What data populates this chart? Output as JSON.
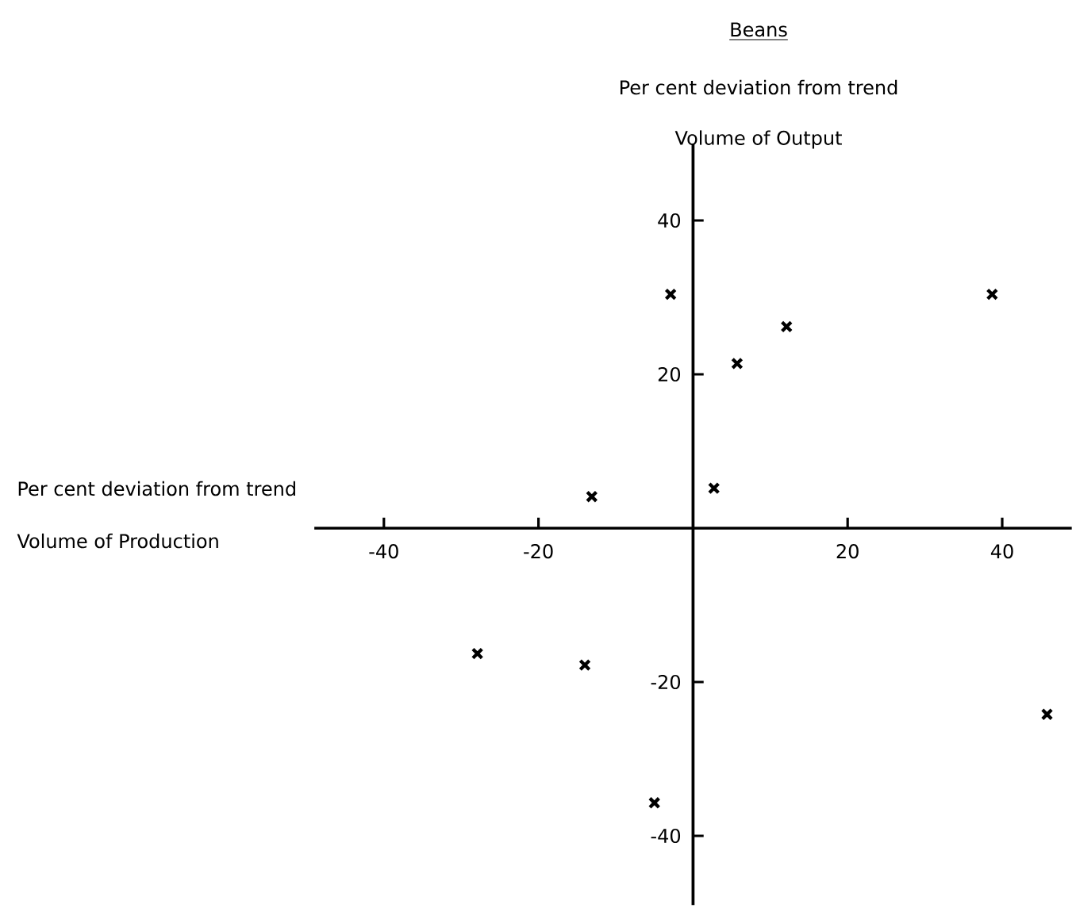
{
  "chart_data": {
    "type": "scatter",
    "title": "Beans",
    "subtitle": "Per cent deviation from trend",
    "ylabel": "Volume of Output",
    "annotations": [
      "Per cent deviation from trend",
      "Volume of Production"
    ],
    "series": [
      {
        "color": "#000000",
        "marker": "cross",
        "x": [
          -2.9,
          5.7,
          12.1,
          38.7,
          2.7,
          -13.1,
          -27.9,
          -14.0,
          -5.0,
          45.8
        ],
        "values": [
          30.4,
          21.4,
          26.2,
          30.4,
          5.2,
          4.1,
          -16.3,
          -17.8,
          -35.7,
          -24.2
        ]
      }
    ],
    "xlim": [
      -49,
      49
    ],
    "ylim": [
      -49,
      50
    ],
    "xticks": [
      -40,
      -20,
      20,
      40
    ],
    "yticks": [
      -40,
      -20,
      20,
      40
    ],
    "grid": false
  }
}
